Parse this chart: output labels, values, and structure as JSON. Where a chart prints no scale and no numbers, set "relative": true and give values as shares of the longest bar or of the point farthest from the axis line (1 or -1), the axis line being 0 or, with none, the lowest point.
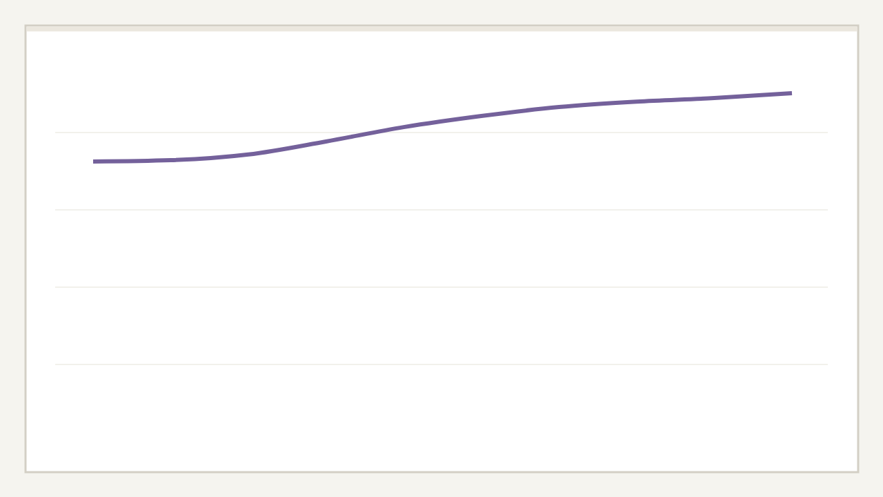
{
  "chart_data": {
    "type": "line",
    "relative": true,
    "grid": "y",
    "categories": [
      null,
      null,
      null,
      null,
      null,
      null,
      null,
      null,
      null,
      null
    ],
    "series": [
      {
        "color": "#74619b",
        "values": [
          0.748,
          0.753,
          0.774,
          0.822,
          0.875,
          0.916,
          0.949,
          0.969,
          0.982,
          1
        ]
      }
    ]
  }
}
